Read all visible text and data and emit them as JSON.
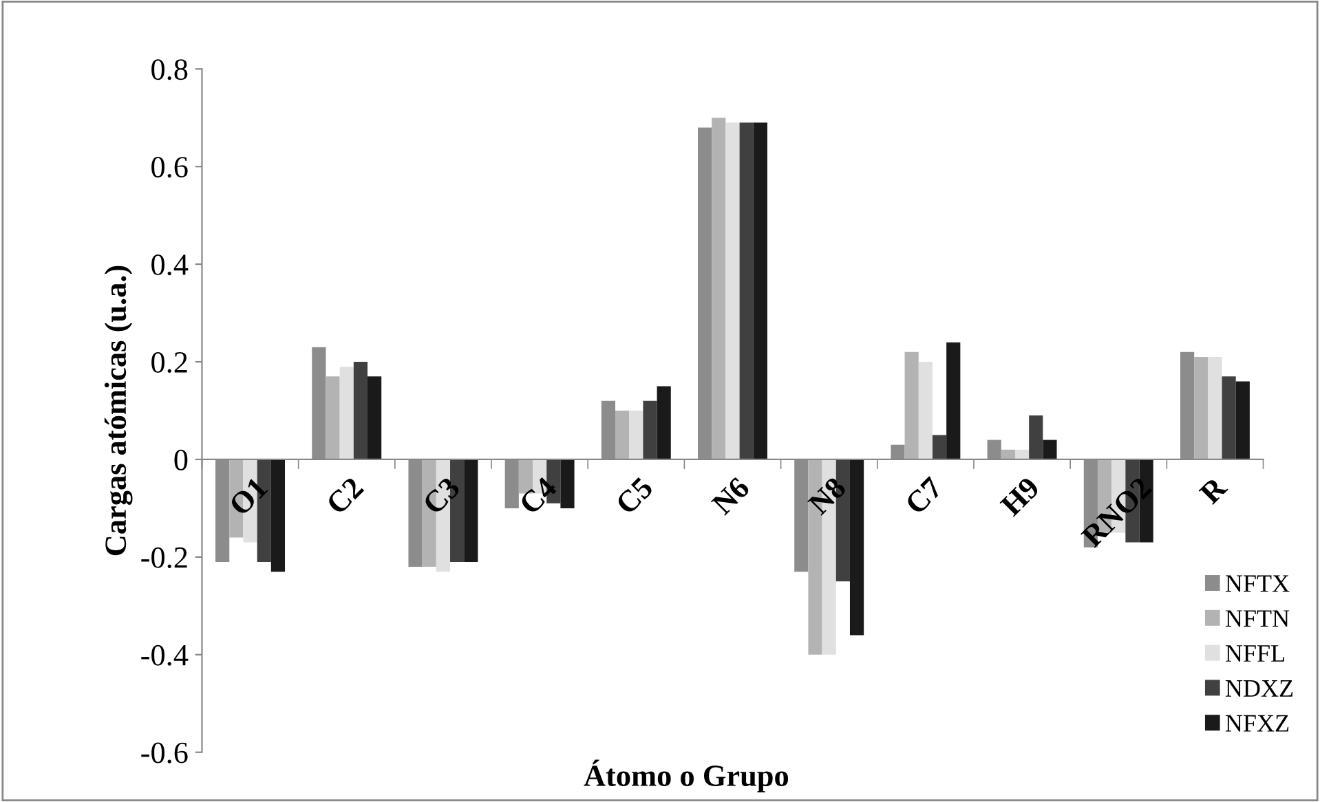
{
  "chart_data": {
    "type": "bar",
    "xlabel": "Átomo o Grupo",
    "ylabel": "Cargas atómicas (u.a.)",
    "categories": [
      "O1",
      "C2",
      "C3",
      "C4",
      "C5",
      "N6",
      "N8",
      "C7",
      "H9",
      "RNO2",
      "R"
    ],
    "series": [
      {
        "name": "NFTX",
        "color": "#8c8c8c",
        "values": [
          -0.21,
          0.23,
          -0.22,
          -0.1,
          0.12,
          0.68,
          -0.23,
          0.03,
          0.04,
          -0.18,
          0.22
        ]
      },
      {
        "name": "NFTN",
        "color": "#b3b3b3",
        "values": [
          -0.16,
          0.17,
          -0.22,
          -0.07,
          0.1,
          0.7,
          -0.4,
          0.22,
          0.02,
          -0.15,
          0.21
        ]
      },
      {
        "name": "NFFL",
        "color": "#e0e0e0",
        "values": [
          -0.17,
          0.19,
          -0.23,
          -0.07,
          0.1,
          0.69,
          -0.4,
          0.2,
          0.02,
          -0.15,
          0.21
        ]
      },
      {
        "name": "NDXZ",
        "color": "#404040",
        "values": [
          -0.21,
          0.2,
          -0.21,
          -0.09,
          0.12,
          0.69,
          -0.25,
          0.05,
          0.09,
          -0.17,
          0.17
        ]
      },
      {
        "name": "NFXZ",
        "color": "#1a1a1a",
        "values": [
          -0.23,
          0.17,
          -0.21,
          -0.1,
          0.15,
          0.69,
          -0.36,
          0.24,
          0.04,
          -0.17,
          0.16
        ]
      }
    ],
    "ylim": [
      -0.6,
      0.8
    ],
    "yticks": [
      -0.6,
      -0.4,
      -0.2,
      0,
      0.2,
      0.4,
      0.6,
      0.8
    ],
    "grid": false,
    "legend": "bottom right"
  }
}
